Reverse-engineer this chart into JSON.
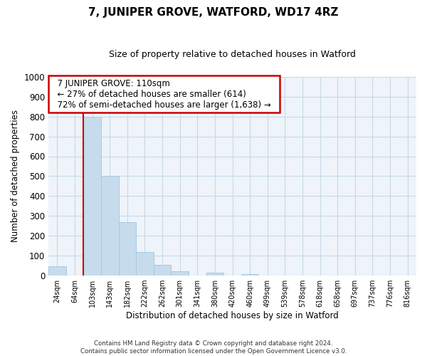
{
  "title": "7, JUNIPER GROVE, WATFORD, WD17 4RZ",
  "subtitle": "Size of property relative to detached houses in Watford",
  "xlabel": "Distribution of detached houses by size in Watford",
  "ylabel": "Number of detached properties",
  "bar_labels": [
    "24sqm",
    "64sqm",
    "103sqm",
    "143sqm",
    "182sqm",
    "222sqm",
    "262sqm",
    "301sqm",
    "341sqm",
    "380sqm",
    "420sqm",
    "460sqm",
    "499sqm",
    "539sqm",
    "578sqm",
    "618sqm",
    "658sqm",
    "697sqm",
    "737sqm",
    "776sqm",
    "816sqm"
  ],
  "bar_values": [
    47,
    0,
    800,
    500,
    270,
    120,
    53,
    20,
    0,
    15,
    0,
    8,
    0,
    0,
    0,
    0,
    0,
    0,
    0,
    0,
    0
  ],
  "bar_color": "#c6dcec",
  "bar_edge_color": "#a8c8e0",
  "red_line_bar_index": 2,
  "ylim": [
    0,
    1000
  ],
  "yticks": [
    0,
    100,
    200,
    300,
    400,
    500,
    600,
    700,
    800,
    900,
    1000
  ],
  "annotation_title": "7 JUNIPER GROVE: 110sqm",
  "annotation_line1": "← 27% of detached houses are smaller (614)",
  "annotation_line2": "72% of semi-detached houses are larger (1,638) →",
  "footer_line1": "Contains HM Land Registry data © Crown copyright and database right 2024.",
  "footer_line2": "Contains public sector information licensed under the Open Government Licence v3.0.",
  "bg_color": "#ffffff",
  "plot_bg_color": "#eef4f9",
  "grid_color": "#c8d8e8",
  "red_line_color": "#cc0000",
  "annotation_box_color": "#cc0000"
}
